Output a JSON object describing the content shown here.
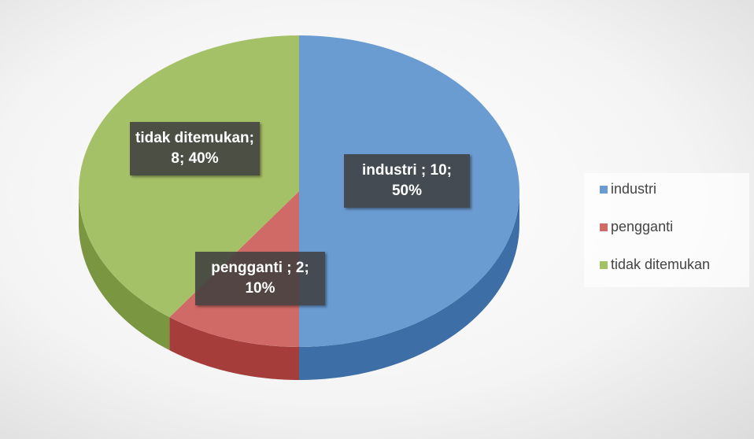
{
  "chart_data": {
    "type": "pie3d",
    "categories": [
      "industri",
      "pengganti",
      "tidak ditemukan"
    ],
    "values": [
      10,
      2,
      8
    ],
    "data_labels": [
      "industri ; 10; 50%",
      "pengganti ; 2; 10%",
      "tidak ditemukan; 8; 40%"
    ],
    "colors": [
      "#6a9bd1",
      "#d06a67",
      "#a5c167"
    ],
    "side_colors": [
      "#3d6ea6",
      "#a53d3b",
      "#7a9640"
    ],
    "legend": "right"
  }
}
